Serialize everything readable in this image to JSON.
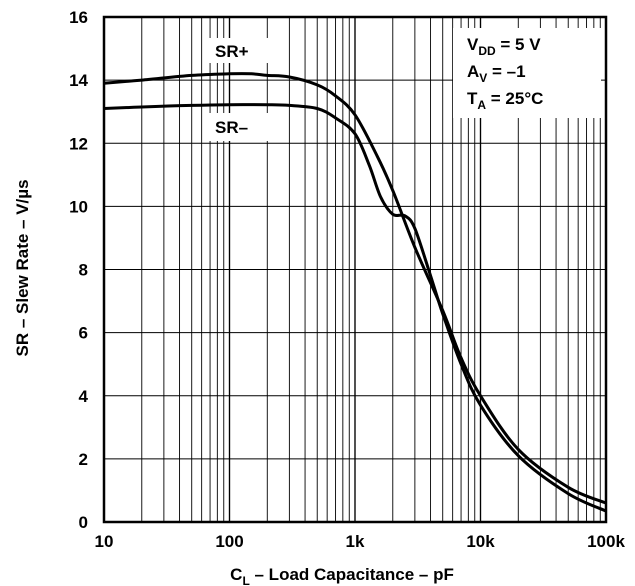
{
  "chart_data": {
    "type": "line",
    "xscale": "log",
    "xlim": [
      10,
      100000
    ],
    "ylim": [
      0,
      16
    ],
    "grid": true,
    "xticks": [
      10,
      100,
      1000,
      10000,
      100000
    ],
    "xtick_labels": [
      "10",
      "100",
      "1k",
      "10k",
      "100k"
    ],
    "yticks": [
      0,
      2,
      4,
      6,
      8,
      10,
      12,
      14,
      16
    ],
    "ytick_labels": [
      "0",
      "2",
      "4",
      "6",
      "8",
      "10",
      "12",
      "14",
      "16"
    ],
    "xlabel": {
      "main": "C",
      "sub": "L",
      "rest": " – Load Capacitance – pF"
    },
    "ylabel": "SR – Slew Rate – V/µs",
    "conditions": [
      {
        "main": "V",
        "sub": "DD",
        "rest": " = 5 V"
      },
      {
        "main": "A",
        "sub": "V",
        "rest": " = –1"
      },
      {
        "main": "T",
        "sub": "A",
        "rest": " = 25°C"
      }
    ],
    "series": [
      {
        "name": "SR+",
        "x": [
          10,
          20,
          50,
          100,
          150,
          200,
          300,
          500,
          700,
          1000,
          1500,
          2000,
          3000,
          5000,
          7000,
          10000,
          20000,
          50000,
          100000
        ],
        "y": [
          13.9,
          14.0,
          14.15,
          14.2,
          14.2,
          14.15,
          14.1,
          13.85,
          13.5,
          12.9,
          11.6,
          10.5,
          8.7,
          6.7,
          5.2,
          4.0,
          2.3,
          1.1,
          0.6
        ]
      },
      {
        "name": "SR−",
        "x": [
          10,
          20,
          50,
          100,
          200,
          300,
          500,
          700,
          1000,
          1300,
          1600,
          2000,
          2500,
          3000,
          4000,
          5000,
          7000,
          10000,
          20000,
          50000,
          100000
        ],
        "y": [
          13.1,
          13.15,
          13.2,
          13.22,
          13.22,
          13.2,
          13.1,
          12.8,
          12.3,
          11.3,
          10.3,
          9.75,
          9.7,
          9.3,
          7.8,
          6.6,
          5.0,
          3.7,
          2.1,
          0.9,
          0.35
        ]
      }
    ],
    "labels": [
      {
        "text": "SR+",
        "series": "SR+"
      },
      {
        "text": "SR–",
        "series": "SR−"
      }
    ]
  }
}
